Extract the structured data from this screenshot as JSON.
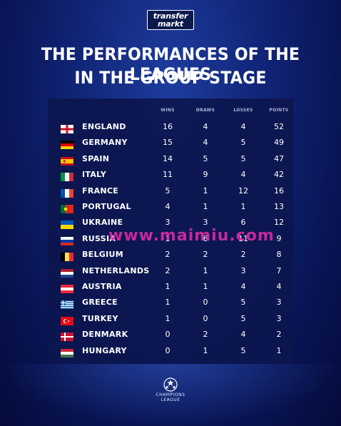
{
  "logo": {
    "line1": "transfer",
    "line2": "markt"
  },
  "title": {
    "line1": "THE PERFORMANCES OF THE LEAGUES",
    "line2": "IN THE GROUP STAGE"
  },
  "columns": {
    "wins": "WINS",
    "draws": "DRAWS",
    "losses": "LOSSES",
    "points": "POINTS"
  },
  "rows": [
    {
      "team": "ENGLAND",
      "flag": "england-flag",
      "wins": "16",
      "draws": "4",
      "losses": "4",
      "points": "52"
    },
    {
      "team": "GERMANY",
      "flag": "germany-flag",
      "wins": "15",
      "draws": "4",
      "losses": "5",
      "points": "49"
    },
    {
      "team": "SPAIN",
      "flag": "spain-flag",
      "wins": "14",
      "draws": "5",
      "losses": "5",
      "points": "47"
    },
    {
      "team": "ITALY",
      "flag": "italy-flag",
      "wins": "11",
      "draws": "9",
      "losses": "4",
      "points": "42"
    },
    {
      "team": "FRANCE",
      "flag": "france-flag",
      "wins": "5",
      "draws": "1",
      "losses": "12",
      "points": "16"
    },
    {
      "team": "PORTUGAL",
      "flag": "portugal-flag",
      "wins": "4",
      "draws": "1",
      "losses": "1",
      "points": "13"
    },
    {
      "team": "UKRAINE",
      "flag": "ukraine-flag",
      "wins": "3",
      "draws": "3",
      "losses": "6",
      "points": "12"
    },
    {
      "team": "RUSSIA",
      "flag": "russia-flag",
      "wins": "1",
      "draws": "6",
      "losses": "11",
      "points": "9"
    },
    {
      "team": "BELGIUM",
      "flag": "belgium-flag",
      "wins": "2",
      "draws": "2",
      "losses": "2",
      "points": "8"
    },
    {
      "team": "NETHERLANDS",
      "flag": "netherlands-flag",
      "wins": "2",
      "draws": "1",
      "losses": "3",
      "points": "7"
    },
    {
      "team": "AUSTRIA",
      "flag": "austria-flag",
      "wins": "1",
      "draws": "1",
      "losses": "4",
      "points": "4"
    },
    {
      "team": "GREECE",
      "flag": "greece-flag",
      "wins": "1",
      "draws": "0",
      "losses": "5",
      "points": "3"
    },
    {
      "team": "TURKEY",
      "flag": "turkey-flag",
      "wins": "1",
      "draws": "0",
      "losses": "5",
      "points": "3"
    },
    {
      "team": "DENMARK",
      "flag": "denmark-flag",
      "wins": "0",
      "draws": "2",
      "losses": "4",
      "points": "2"
    },
    {
      "team": "HUNGARY",
      "flag": "hungary-flag",
      "wins": "0",
      "draws": "1",
      "losses": "5",
      "points": "1"
    }
  ],
  "watermark": "www.maimiu.com",
  "footer": {
    "line1": "CHAMPIONS",
    "line2": "LEAGUE"
  },
  "colors": {
    "background": "#0f2170",
    "panel": "#0c164e",
    "watermark": "#e72daa"
  }
}
